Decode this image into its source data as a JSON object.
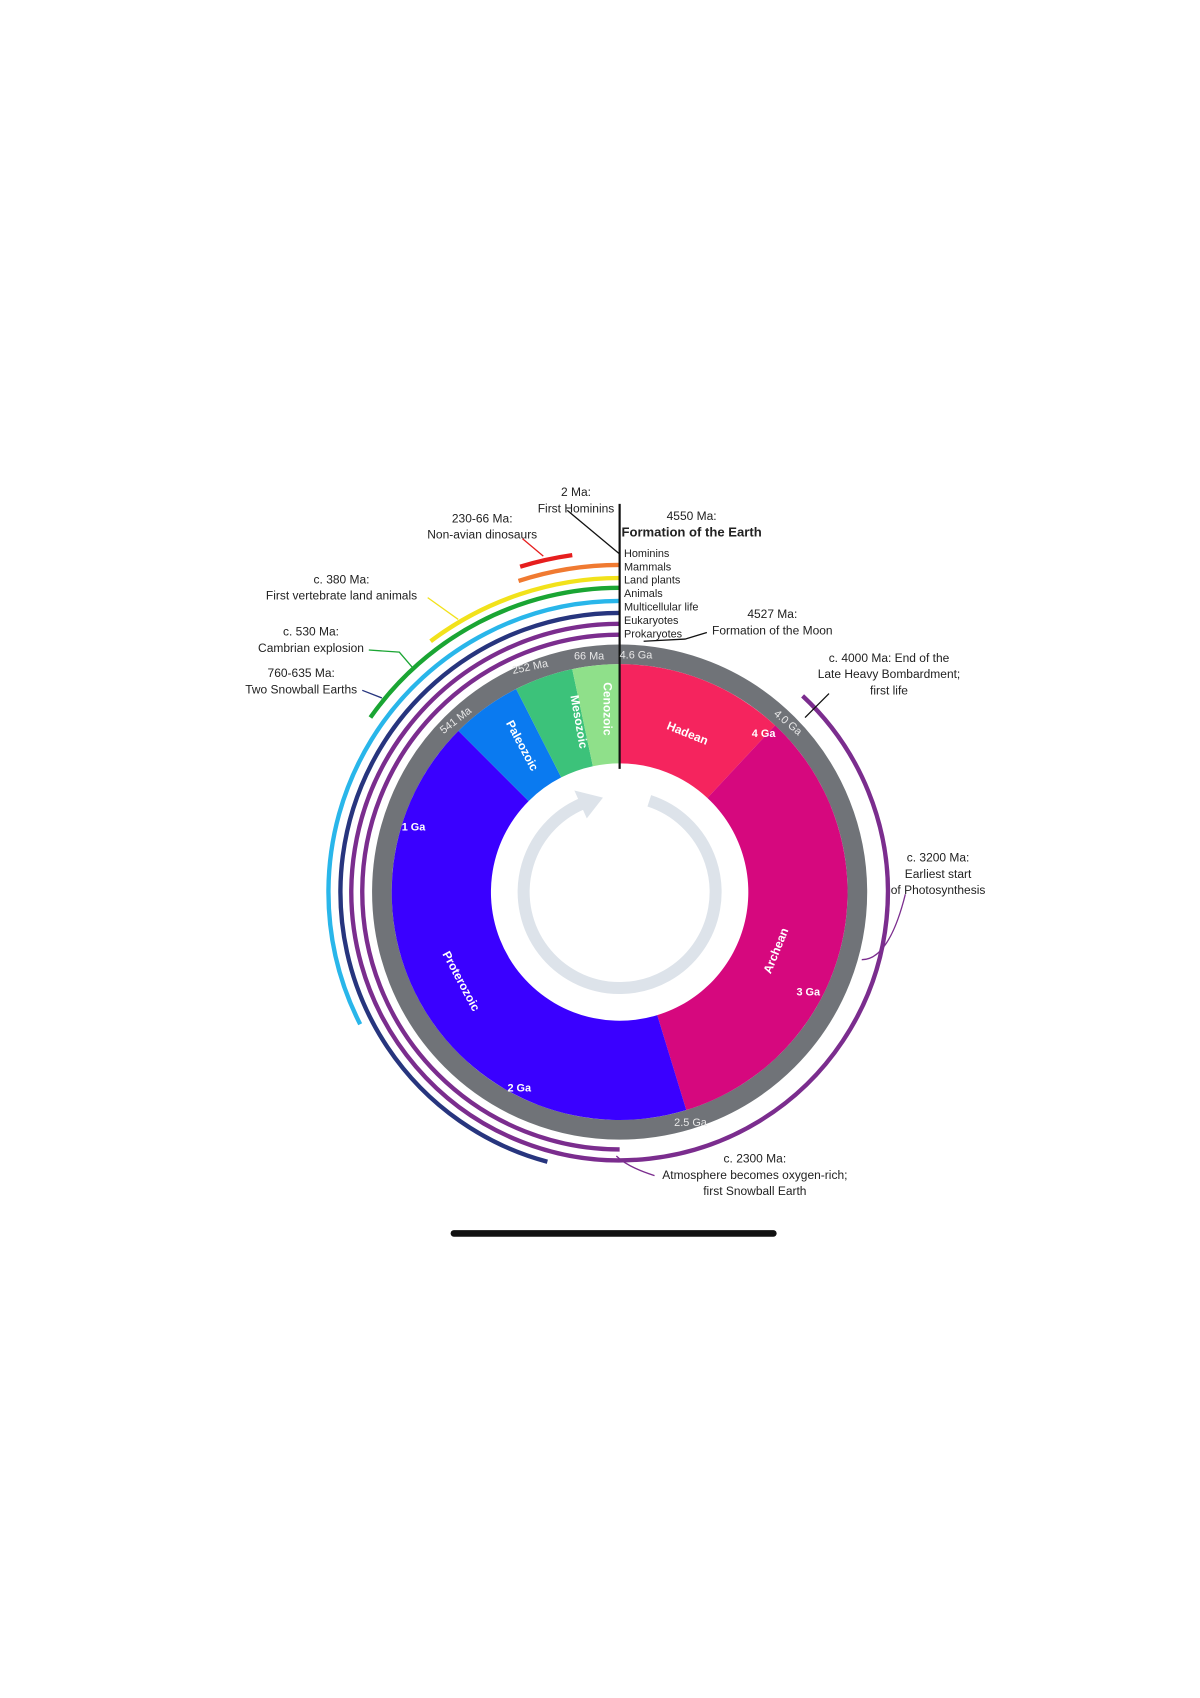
{
  "eras": [
    {
      "name": "Hadean"
    },
    {
      "name": "Archean"
    },
    {
      "name": "Proterozoic"
    },
    {
      "name": "Paleozoic"
    },
    {
      "name": "Mesozoic"
    },
    {
      "name": "Cenozoic"
    }
  ],
  "ring_labels": [
    "4.6 Ga",
    "66 Ma",
    "252 Ma",
    "541 Ma",
    "4.0 Ga",
    "2.5 Ga"
  ],
  "inner_labels": [
    "4 Ga",
    "1 Ga",
    "3 Ga",
    "2 Ga"
  ],
  "lineages": [
    "Hominins",
    "Mammals",
    "Land plants",
    "Animals",
    "Multicellular life",
    "Eukaryotes",
    "Prokaryotes"
  ],
  "events": [
    {
      "lines": [
        "2 Ma:",
        "First Hominins"
      ]
    },
    {
      "lines": [
        "4550 Ma:",
        "Formation of the Earth"
      ]
    },
    {
      "lines": [
        "230-66 Ma:",
        "Non-avian dinosaurs"
      ]
    },
    {
      "lines": [
        "4527 Ma:",
        "Formation of the Moon"
      ]
    },
    {
      "lines": [
        "c. 380 Ma:",
        "First vertebrate land animals"
      ]
    },
    {
      "lines": [
        "c. 530 Ma:",
        "Cambrian explosion"
      ]
    },
    {
      "lines": [
        "760-635 Ma:",
        "Two Snowball Earths"
      ]
    },
    {
      "lines": [
        "c. 4000 Ma: End of the",
        "Late Heavy Bombardment;",
        "first life"
      ]
    },
    {
      "lines": [
        "c. 3200 Ma:",
        "Earliest start",
        "of Photosynthesis"
      ]
    },
    {
      "lines": [
        "c. 2300 Ma:",
        "Atmosphere becomes oxygen-rich;",
        "first Snowball Earth"
      ]
    }
  ]
}
